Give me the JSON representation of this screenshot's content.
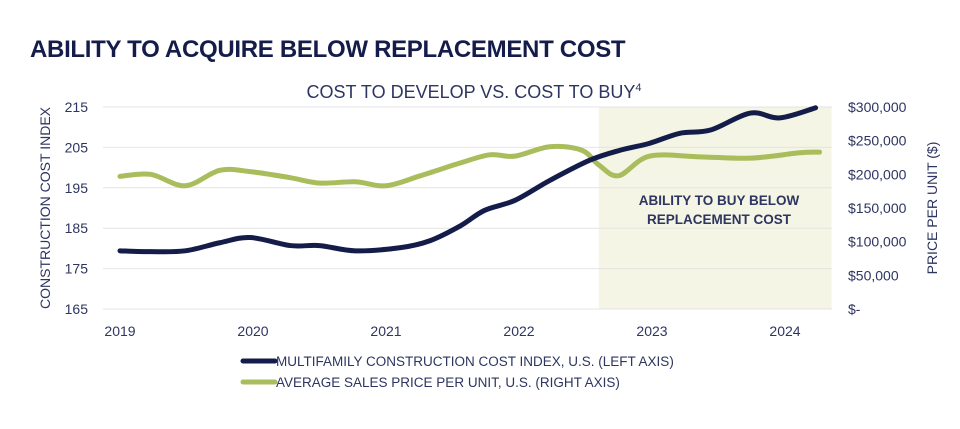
{
  "page_title": "ABILITY TO ACQUIRE BELOW REPLACEMENT COST",
  "chart_data": {
    "type": "line",
    "title": "COST TO DEVELOP VS. COST TO BUY",
    "title_superscript": "4",
    "ylabel": "CONSTRUCTION COST INDEX",
    "y2label": "PRICE PER UNIT ($)",
    "ylim": [
      165,
      215
    ],
    "y2lim": [
      0,
      300000
    ],
    "yticks": [
      "215",
      "205",
      "195",
      "185",
      "175",
      "165"
    ],
    "y2ticks": [
      "$300,000",
      "$250,000",
      "$200,000",
      "$150,000",
      "$100,000",
      "$50,000",
      "$-"
    ],
    "xticks": [
      "2019",
      "2020",
      "2021",
      "2022",
      "2023",
      "2024"
    ],
    "grid": true,
    "shaded_region": {
      "x": [
        2022.6,
        2024.35
      ],
      "label_lines": [
        "ABILITY TO BUY BELOW",
        "REPLACEMENT COST"
      ],
      "color": "#f4f5e4"
    },
    "legend_position": "bottom",
    "series": [
      {
        "name": "MULTIFAMILY CONSTRUCTION COST INDEX, U.S. (LEFT AXIS)",
        "axis": "left",
        "color": "#141c4a",
        "x": [
          2019.0,
          2019.23,
          2019.49,
          2019.75,
          2019.98,
          2020.28,
          2020.5,
          2020.77,
          2021.11,
          2021.33,
          2021.56,
          2021.74,
          2021.97,
          2022.23,
          2022.53,
          2022.76,
          2022.98,
          2023.21,
          2023.44,
          2023.74,
          2023.96,
          2024.23
        ],
        "y": [
          179.4,
          179.2,
          179.4,
          181.4,
          182.7,
          180.7,
          180.7,
          179.4,
          180.2,
          181.9,
          185.6,
          189.4,
          191.9,
          196.8,
          201.8,
          204.3,
          206.0,
          208.5,
          209.3,
          213.5,
          212.3,
          214.8
        ]
      },
      {
        "name": "AVERAGE SALES PRICE PER UNIT, U.S. (RIGHT AXIS)",
        "axis": "right",
        "color": "#a9bd5c",
        "x": [
          2019.0,
          2019.23,
          2019.49,
          2019.75,
          2019.98,
          2020.28,
          2020.5,
          2020.77,
          2021.0,
          2021.26,
          2021.56,
          2021.78,
          2021.97,
          2022.23,
          2022.47,
          2022.6,
          2022.75,
          2022.98,
          2023.36,
          2023.74,
          2024.11,
          2024.26
        ],
        "y": [
          197000,
          200000,
          183000,
          206000,
          204000,
          195000,
          187000,
          189000,
          183000,
          198000,
          217000,
          229000,
          227000,
          241000,
          236000,
          214000,
          198000,
          227000,
          226000,
          224000,
          232000,
          233000
        ]
      }
    ]
  }
}
